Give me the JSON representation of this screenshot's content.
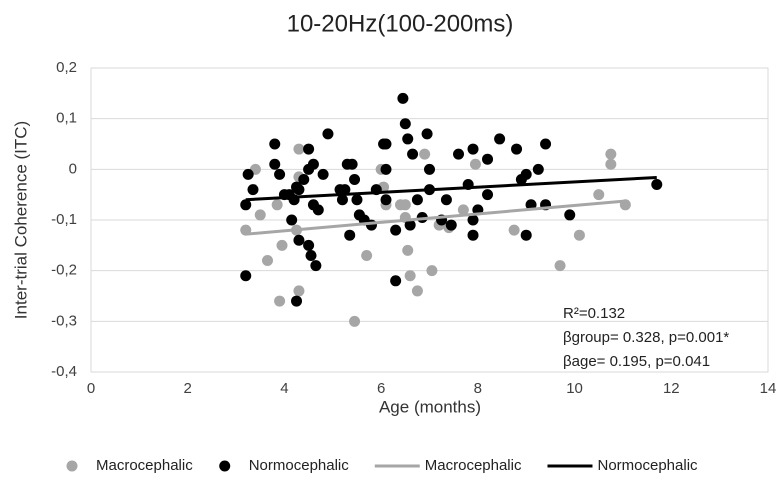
{
  "chart_data": {
    "type": "scatter",
    "title": "10-20Hz(100-200ms)",
    "x_label": "Age (months)",
    "y_label": "Inter-trial Coherence (ITC)",
    "xlim": [
      0,
      14
    ],
    "xticks": [
      0,
      2,
      4,
      6,
      8,
      10,
      12,
      14
    ],
    "ylim": [
      -0.4,
      0.2
    ],
    "yticks": [
      {
        "value": -0.4,
        "label": "-0,4"
      },
      {
        "value": -0.3,
        "label": "-0,3"
      },
      {
        "value": -0.2,
        "label": "-0,2"
      },
      {
        "value": -0.1,
        "label": "-0,1"
      },
      0,
      {
        "value": 0.1,
        "label": "0,1"
      },
      {
        "value": 0.2,
        "label": "0,2"
      }
    ],
    "grid": true,
    "legend": "bottom",
    "annotations": [
      "R²=0.132",
      "βgroup= 0.328, p=0.001*",
      "βage= 0.195, p=0.041"
    ],
    "series": [
      {
        "name": "Macrocephalic",
        "color": "#a6a6a6",
        "type": "scatter",
        "x": [
          3.4,
          3.5,
          3.65,
          3.85,
          3.9,
          3.95,
          4.3,
          4.25,
          4.3,
          4.3,
          5.45,
          5.55,
          5.7,
          6.0,
          6.05,
          6.1,
          6.4,
          6.5,
          6.5,
          6.55,
          6.6,
          6.75,
          6.9,
          7.05,
          7.2,
          7.4,
          7.7,
          7.95,
          8.75,
          9.7,
          10.1,
          10.5,
          10.75,
          10.75,
          11.05,
          3.2
        ],
        "values": [
          0.0,
          -0.09,
          -0.18,
          -0.07,
          -0.26,
          -0.15,
          -0.015,
          -0.12,
          0.04,
          -0.24,
          -0.3,
          -0.09,
          -0.17,
          0.0,
          -0.035,
          -0.07,
          -0.07,
          -0.07,
          -0.095,
          -0.16,
          -0.21,
          -0.24,
          0.03,
          -0.2,
          -0.11,
          -0.115,
          -0.08,
          0.01,
          -0.12,
          -0.19,
          -0.13,
          -0.05,
          0.03,
          0.01,
          -0.07,
          -0.12
        ]
      },
      {
        "name": "Normocephalic",
        "color": "#000000",
        "type": "scatter",
        "x": [
          3.2,
          3.2,
          3.25,
          3.35,
          3.8,
          3.8,
          3.9,
          4.0,
          4.1,
          4.15,
          4.2,
          4.25,
          4.25,
          4.3,
          4.3,
          4.4,
          4.5,
          4.5,
          4.5,
          4.55,
          4.6,
          4.6,
          4.65,
          4.7,
          4.8,
          4.9,
          5.15,
          5.2,
          5.25,
          5.3,
          5.35,
          5.4,
          5.45,
          5.5,
          5.55,
          5.65,
          5.8,
          5.9,
          6.05,
          6.1,
          6.1,
          6.1,
          6.3,
          6.3,
          6.45,
          6.5,
          6.55,
          6.6,
          6.65,
          6.75,
          6.85,
          6.95,
          7.0,
          7.0,
          7.25,
          7.35,
          7.45,
          7.6,
          7.8,
          7.9,
          7.9,
          7.9,
          8.0,
          8.2,
          8.2,
          8.45,
          8.8,
          8.9,
          9.0,
          9.0,
          9.1,
          9.25,
          9.4,
          9.4,
          9.9,
          11.7
        ],
        "values": [
          -0.21,
          -0.07,
          -0.01,
          -0.04,
          0.01,
          0.05,
          -0.01,
          -0.05,
          -0.05,
          -0.1,
          -0.06,
          -0.035,
          -0.26,
          -0.04,
          -0.14,
          -0.02,
          0.0,
          -0.15,
          0.04,
          -0.17,
          0.01,
          -0.07,
          -0.19,
          -0.08,
          -0.01,
          0.07,
          -0.04,
          -0.06,
          -0.04,
          0.01,
          -0.13,
          0.01,
          -0.02,
          -0.06,
          -0.09,
          -0.1,
          -0.11,
          -0.04,
          0.05,
          0.05,
          -0.06,
          0.0,
          -0.12,
          -0.22,
          0.14,
          0.09,
          0.06,
          -0.11,
          0.03,
          -0.06,
          -0.095,
          0.07,
          0.0,
          -0.04,
          -0.1,
          -0.06,
          -0.11,
          0.03,
          -0.03,
          0.04,
          -0.13,
          -0.1,
          -0.08,
          0.02,
          -0.05,
          0.06,
          0.04,
          -0.02,
          -0.01,
          -0.13,
          -0.07,
          0.0,
          0.05,
          -0.07,
          -0.09,
          -0.03
        ]
      },
      {
        "name": "Macrocephalic",
        "color": "#a6a6a6",
        "type": "line",
        "x": [
          3.2,
          11
        ],
        "values": [
          -0.128,
          -0.063
        ]
      },
      {
        "name": "Normocephalic",
        "color": "#000000",
        "type": "line",
        "x": [
          3.2,
          11.7
        ],
        "values": [
          -0.06,
          -0.016
        ]
      }
    ]
  }
}
